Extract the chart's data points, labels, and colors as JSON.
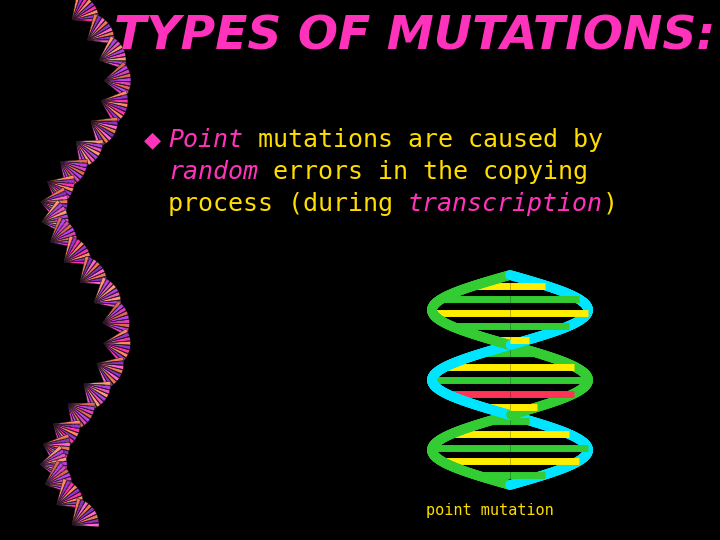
{
  "background_color": "#000000",
  "title": "TYPES OF MUTATIONS:",
  "title_color": "#ff33bb",
  "title_fontsize": 34,
  "bullet_char": "◆",
  "bullet_color": "#ff33bb",
  "line1_seg1": "Point",
  "line1_seg1_color": "#ff33bb",
  "line1_seg2": " mutations are caused by",
  "line1_seg2_color": "#ffdd00",
  "line2_seg1": "random",
  "line2_seg1_color": "#ff33bb",
  "line2_seg2": " errors in the copying",
  "line2_seg2_color": "#ffdd00",
  "line3_seg1": "process (during ",
  "line3_seg1_color": "#ffdd00",
  "line3_seg2": "transcription",
  "line3_seg2_color": "#ff33bb",
  "line3_seg3": ")",
  "line3_seg3_color": "#ffdd00",
  "caption": "point mutation",
  "caption_color": "#ffdd00",
  "caption_fontsize": 11,
  "pink_shades": [
    "#ff33aa",
    "#ff66cc",
    "#ee55bb",
    "#dd44bb"
  ],
  "purple_shades": [
    "#9933cc",
    "#8833bb",
    "#aa44dd",
    "#bb44ee"
  ],
  "salmon_shades": [
    "#ff8866",
    "#ee7755",
    "#ff9977",
    "#dd6655"
  ],
  "cyan_color": "#00e5ff",
  "green_color": "#33cc33",
  "rung_color_1": "#33cc33",
  "rung_color_2": "#ffee00",
  "rung_color_red": "#ff3355"
}
